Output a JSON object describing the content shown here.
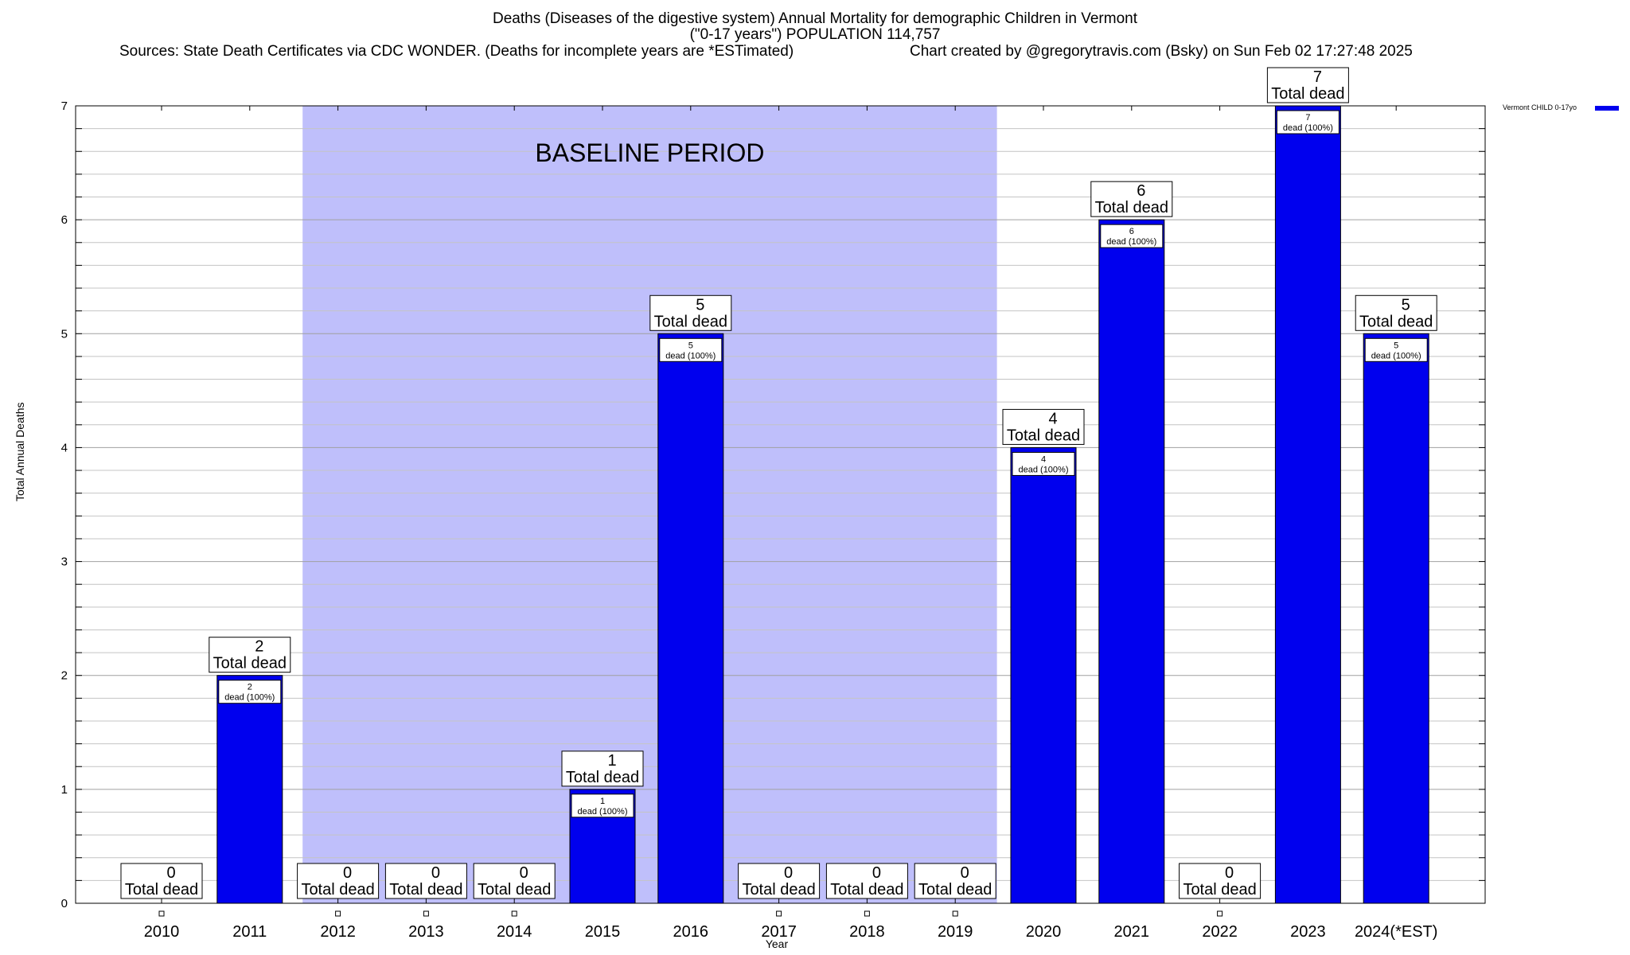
{
  "title": {
    "line1": "Deaths (Diseases of the digestive system) Annual Mortality for demographic Children in Vermont",
    "line2": "(\"0-17 years\") POPULATION 114,757",
    "sources": "Sources: State Death Certificates via CDC WONDER. (Deaths for incomplete years are *ESTimated)",
    "credit": "Chart created by @gregorytravis.com (Bsky) on Sun Feb 02 17:27:48 2025"
  },
  "chart_data": {
    "type": "bar",
    "categories": [
      "2010",
      "2011",
      "2012",
      "2013",
      "2014",
      "2015",
      "2016",
      "2017",
      "2018",
      "2019",
      "2020",
      "2021",
      "2022",
      "2023",
      "2024(*EST)"
    ],
    "series": [
      {
        "name": "Vermont CHILD 0-17yo",
        "values": [
          0,
          2,
          0,
          0,
          0,
          1,
          5,
          0,
          0,
          0,
          4,
          6,
          0,
          7,
          5
        ]
      }
    ],
    "total_label_suffix": "Total dead",
    "inner_label_suffix": "dead (100%)",
    "xlabel": "Year",
    "ylabel": "Total Annual Deaths",
    "ylim": [
      0,
      7
    ],
    "yticks": [
      "0",
      "1",
      "2",
      "3",
      "4",
      "5",
      "6",
      "7"
    ],
    "grid": true,
    "legend_position": "top-right",
    "bar_color": "#0000ee",
    "annotation": {
      "text": "BASELINE PERIOD",
      "from_category": "2012",
      "to_category": "2019",
      "color": "#bfbffb"
    }
  }
}
